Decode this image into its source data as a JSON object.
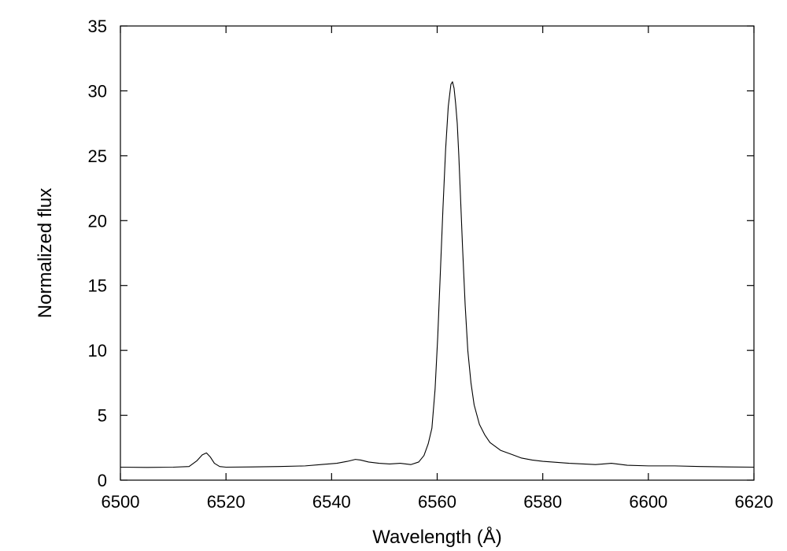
{
  "chart_data": {
    "type": "line",
    "title": "",
    "xlabel": "Wavelength (Å)",
    "ylabel": "Normalized flux",
    "xlim": [
      6500,
      6620
    ],
    "ylim": [
      0,
      35
    ],
    "x_ticks": [
      6500,
      6520,
      6540,
      6560,
      6580,
      6600,
      6620
    ],
    "y_ticks": [
      0,
      5,
      10,
      15,
      20,
      25,
      30,
      35
    ],
    "grid": false,
    "legend": "none",
    "line_color": "#000000",
    "series": [
      {
        "x": [
          6500,
          6505,
          6510,
          6513,
          6514.5,
          6515.5,
          6516.3,
          6517,
          6517.8,
          6518.8,
          6520,
          6525,
          6530,
          6535,
          6538,
          6541,
          6543,
          6544.5,
          6545.5,
          6547,
          6549,
          6551,
          6553,
          6555,
          6556.5,
          6557.5,
          6558.3,
          6559,
          6559.6,
          6560.1,
          6560.6,
          6561.1,
          6561.6,
          6562.1,
          6562.6,
          6562.9,
          6563.2,
          6563.5,
          6563.8,
          6564.1,
          6564.4,
          6564.8,
          6565.3,
          6565.8,
          6566.4,
          6567,
          6568,
          6569,
          6570,
          6572,
          6574,
          6576,
          6578,
          6580,
          6585,
          6590,
          6593,
          6596,
          6600,
          6605,
          6610,
          6615,
          6620
        ],
        "y": [
          1.0,
          0.98,
          1.0,
          1.05,
          1.5,
          1.95,
          2.1,
          1.8,
          1.3,
          1.05,
          1.0,
          1.02,
          1.05,
          1.1,
          1.2,
          1.3,
          1.45,
          1.6,
          1.55,
          1.4,
          1.3,
          1.25,
          1.3,
          1.2,
          1.4,
          1.9,
          2.8,
          4.0,
          7.0,
          11.0,
          16.0,
          21.0,
          25.5,
          28.8,
          30.5,
          30.7,
          30.2,
          29.0,
          27.5,
          25.0,
          22.0,
          18.0,
          13.5,
          10.0,
          7.5,
          5.8,
          4.3,
          3.5,
          2.9,
          2.3,
          2.0,
          1.7,
          1.55,
          1.45,
          1.3,
          1.2,
          1.3,
          1.15,
          1.1,
          1.1,
          1.05,
          1.02,
          1.0
        ]
      }
    ]
  }
}
